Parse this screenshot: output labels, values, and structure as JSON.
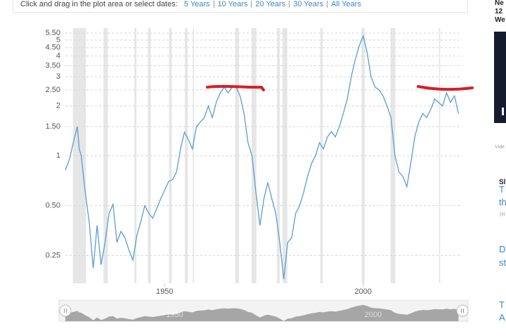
{
  "controls": {
    "prompt": "Click and drag in the plot area or select dates:",
    "links": [
      "5 Years",
      "10 Years",
      "20 Years",
      "30 Years",
      "All Years"
    ]
  },
  "chart_data": {
    "type": "line",
    "x": [
      1925,
      1926,
      1927,
      1928,
      1928.5,
      1929,
      1930,
      1931,
      1932,
      1933,
      1934,
      1935,
      1936,
      1937,
      1938,
      1939,
      1940,
      1941,
      1942,
      1943,
      1944,
      1945,
      1946,
      1947,
      1948,
      1949,
      1950,
      1951,
      1952,
      1953,
      1954,
      1955,
      1956,
      1957,
      1958,
      1959,
      1960,
      1961,
      1962,
      1963,
      1964,
      1965,
      1966,
      1967,
      1968,
      1969,
      1970,
      1971,
      1972,
      1973,
      1974,
      1975,
      1976,
      1977,
      1978,
      1979,
      1980,
      1981,
      1982,
      1983,
      1984,
      1985,
      1986,
      1987,
      1988,
      1989,
      1990,
      1991,
      1992,
      1993,
      1994,
      1995,
      1996,
      1997,
      1998,
      1999,
      2000,
      2001,
      2002,
      2003,
      2004,
      2005,
      2006,
      2007,
      2008,
      2009,
      2010,
      2011,
      2012,
      2013,
      2014,
      2015,
      2016,
      2017,
      2018,
      2019,
      2020,
      2021,
      2022,
      2023,
      2024
    ],
    "values": [
      0.82,
      0.95,
      1.2,
      1.5,
      1.1,
      1.0,
      0.6,
      0.4,
      0.21,
      0.38,
      0.22,
      0.3,
      0.45,
      0.51,
      0.3,
      0.35,
      0.32,
      0.27,
      0.235,
      0.33,
      0.4,
      0.5,
      0.45,
      0.42,
      0.48,
      0.55,
      0.62,
      0.7,
      0.72,
      0.8,
      1.1,
      1.39,
      1.25,
      1.1,
      1.5,
      1.6,
      1.7,
      2.0,
      1.7,
      2.1,
      2.4,
      2.6,
      2.4,
      2.6,
      2.6,
      2.3,
      1.8,
      1.2,
      1.0,
      0.6,
      0.38,
      0.55,
      0.69,
      0.55,
      0.45,
      0.3,
      0.18,
      0.3,
      0.32,
      0.45,
      0.5,
      0.6,
      0.75,
      0.9,
      1.0,
      1.2,
      1.1,
      1.3,
      1.4,
      1.3,
      1.5,
      1.8,
      2.2,
      3.0,
      3.8,
      4.6,
      5.3,
      4.2,
      3.0,
      2.6,
      2.5,
      2.3,
      2.0,
      1.7,
      1.0,
      0.8,
      0.75,
      0.65,
      0.9,
      1.3,
      1.6,
      1.8,
      1.7,
      1.9,
      2.2,
      2.1,
      2.0,
      2.4,
      2.1,
      2.3,
      1.8
    ],
    "color": "#5b9bd5",
    "xlim": [
      1925,
      2025
    ],
    "xticks": [
      1950,
      2000
    ],
    "ylim": [
      0.17,
      5.9
    ],
    "yticks": [
      {
        "value": 5.5,
        "label": "5.50"
      },
      5,
      {
        "value": 4.5,
        "label": "4.50"
      },
      4,
      {
        "value": 3.5,
        "label": "3.50"
      },
      3,
      {
        "value": 2.5,
        "label": "2.50"
      },
      2,
      {
        "value": 1.5,
        "label": "1.50"
      },
      1,
      {
        "value": 0.5,
        "label": "0.50"
      },
      0.25
    ],
    "log_scale": true,
    "grid": true,
    "shaded_ranges": [
      [
        1926.9,
        1930.2
      ],
      [
        1934.6,
        1935.7
      ],
      [
        1942.4,
        1942.9
      ],
      [
        1945.8,
        1946.5
      ],
      [
        1951.1,
        1951.8
      ],
      [
        1955.1,
        1955.8
      ],
      [
        1957.1,
        1957.4
      ],
      [
        1967.8,
        1968.7
      ],
      [
        1971.9,
        1973.1
      ],
      [
        1978.3,
        1979.0
      ],
      [
        1979.7,
        1980.9
      ],
      [
        1989.2,
        1989.8
      ],
      [
        1999.6,
        2000.4
      ],
      [
        2006.9,
        2008.1
      ],
      [
        2019.1,
        2019.4
      ]
    ],
    "shade_color": "#e6e6e6",
    "navigator_color": "#8c8c8c"
  },
  "sidebar": {
    "fragments": [
      "Ne",
      "12",
      "We",
      "Vide",
      "Sl",
      "T",
      "th",
      "(H",
      "D",
      "st",
      "T",
      "A"
    ]
  }
}
